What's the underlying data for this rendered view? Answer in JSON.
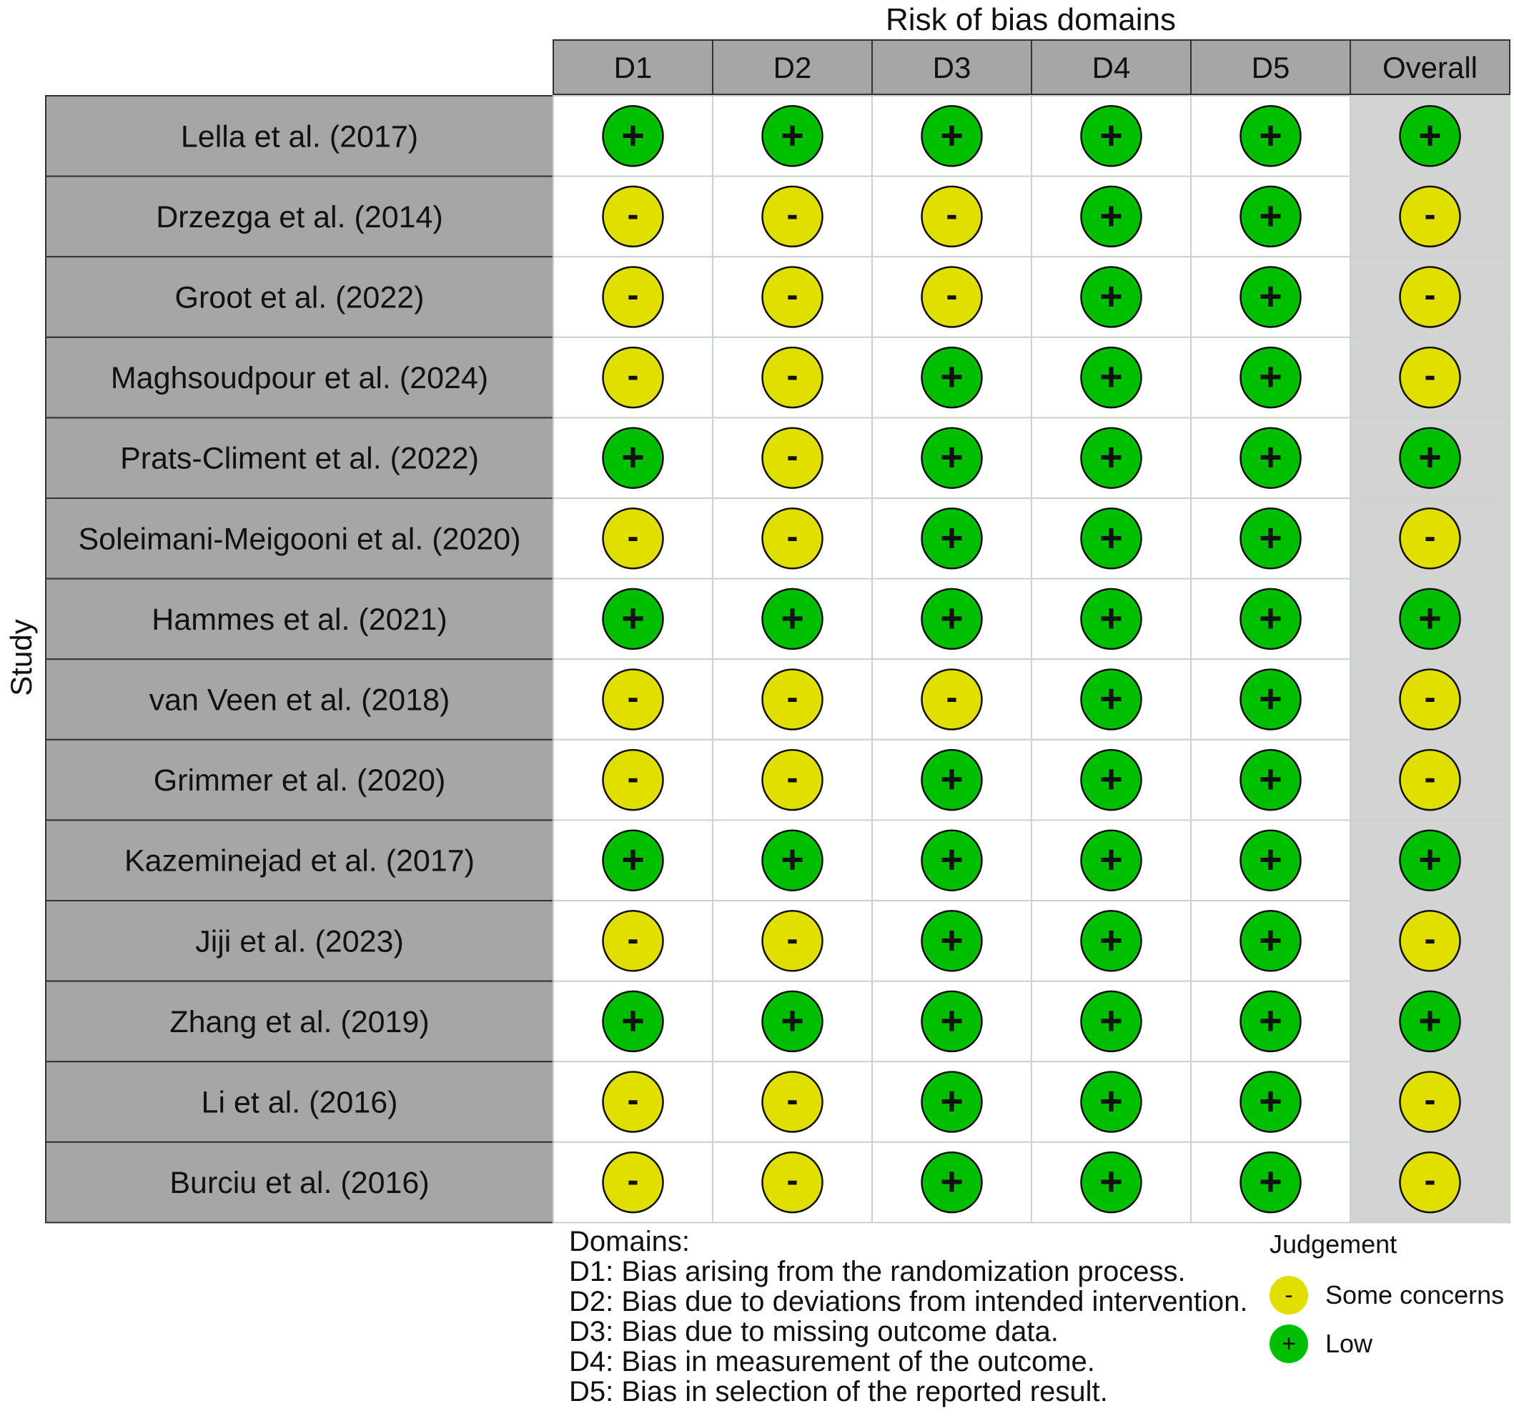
{
  "chart_data": {
    "type": "table",
    "title": "Risk of bias domains",
    "ylabel": "Study",
    "columns": [
      "D1",
      "D2",
      "D3",
      "D4",
      "D5",
      "Overall"
    ],
    "studies": [
      {
        "name": "Lella et al. (2017)",
        "judgements": [
          "+",
          "+",
          "+",
          "+",
          "+",
          "+"
        ]
      },
      {
        "name": "Drzezga et al. (2014)",
        "judgements": [
          "-",
          "-",
          "-",
          "+",
          "+",
          "-"
        ]
      },
      {
        "name": "Groot et al. (2022)",
        "judgements": [
          "-",
          "-",
          "-",
          "+",
          "+",
          "-"
        ]
      },
      {
        "name": "Maghsoudpour et al. (2024)",
        "judgements": [
          "-",
          "-",
          "+",
          "+",
          "+",
          "-"
        ]
      },
      {
        "name": "Prats-Climent et al. (2022)",
        "judgements": [
          "+",
          "-",
          "+",
          "+",
          "+",
          "+"
        ]
      },
      {
        "name": "Soleimani-Meigooni et al. (2020)",
        "judgements": [
          "-",
          "-",
          "+",
          "+",
          "+",
          "-"
        ]
      },
      {
        "name": "Hammes et al. (2021)",
        "judgements": [
          "+",
          "+",
          "+",
          "+",
          "+",
          "+"
        ]
      },
      {
        "name": "van Veen et al. (2018)",
        "judgements": [
          "-",
          "-",
          "-",
          "+",
          "+",
          "-"
        ]
      },
      {
        "name": "Grimmer et al. (2020)",
        "judgements": [
          "-",
          "-",
          "+",
          "+",
          "+",
          "-"
        ]
      },
      {
        "name": "Kazeminejad et al. (2017)",
        "judgements": [
          "+",
          "+",
          "+",
          "+",
          "+",
          "+"
        ]
      },
      {
        "name": "Jiji et al. (2023)",
        "judgements": [
          "-",
          "-",
          "+",
          "+",
          "+",
          "-"
        ]
      },
      {
        "name": "Zhang et al. (2019)",
        "judgements": [
          "+",
          "+",
          "+",
          "+",
          "+",
          "+"
        ]
      },
      {
        "name": "Li et al. (2016)",
        "judgements": [
          "-",
          "-",
          "+",
          "+",
          "+",
          "-"
        ]
      },
      {
        "name": "Burciu et al. (2016)",
        "judgements": [
          "-",
          "-",
          "+",
          "+",
          "+",
          "-"
        ]
      }
    ],
    "legend": {
      "domains_title": "Domains:",
      "domains": [
        "D1: Bias arising from the randomization process.",
        "D2: Bias due to deviations from intended intervention.",
        "D3: Bias due to missing outcome data.",
        "D4: Bias in measurement of the outcome.",
        "D5: Bias in selection of the reported result."
      ],
      "judgement_title": "Judgement",
      "judgements": [
        {
          "symbol": "-",
          "label": "Some concerns",
          "color": "#e0df00"
        },
        {
          "symbol": "+",
          "label": "Low",
          "color": "#00bf00"
        }
      ]
    }
  },
  "colors": {
    "low": "#00bf00",
    "some_concerns": "#e0df00",
    "header_fill": "#a6a6a6",
    "study_fill": "#a6a6a6",
    "overall_fill": "#d3d3d3",
    "grid": "#c8d4c8"
  }
}
